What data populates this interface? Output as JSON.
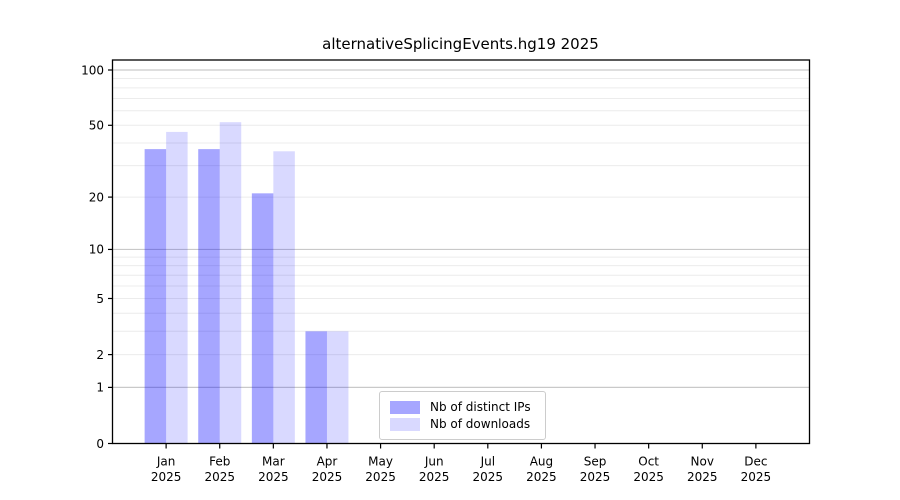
{
  "chart_data": {
    "type": "bar",
    "title": "alternativeSplicingEvents.hg19 2025",
    "year_label": "2025",
    "categories": [
      "Jan",
      "Feb",
      "Mar",
      "Apr",
      "May",
      "Jun",
      "Jul",
      "Aug",
      "Sep",
      "Oct",
      "Nov",
      "Dec"
    ],
    "series": [
      {
        "name": "Nb of distinct IPs",
        "color": "#0000ff",
        "opacity": 0.35,
        "solid_equivalent": "#a6a6ff",
        "values": [
          37,
          37,
          21,
          3,
          0,
          0,
          0,
          0,
          0,
          0,
          0,
          0
        ]
      },
      {
        "name": "Nb of downloads",
        "color": "#0000ff",
        "opacity": 0.15,
        "solid_equivalent": "#d9d9ff",
        "values": [
          46,
          52,
          36,
          3,
          0,
          0,
          0,
          0,
          0,
          0,
          0,
          0
        ]
      }
    ],
    "yscale": "log1p",
    "ylim": [
      0,
      113
    ],
    "yticks": [
      0,
      1,
      2,
      5,
      10,
      20,
      50,
      100
    ],
    "major_gridlines": [
      1,
      10,
      100
    ],
    "minor_gridlines": [
      2,
      3,
      4,
      5,
      6,
      7,
      8,
      9,
      20,
      30,
      40,
      50,
      60,
      70,
      80,
      90
    ],
    "grid": "horizontal",
    "legend_position": "lower-center",
    "colors": {
      "frame": "#000000",
      "major_grid": "#c9c9c9",
      "minor_grid": "#ececec",
      "tick": "#000000"
    }
  }
}
